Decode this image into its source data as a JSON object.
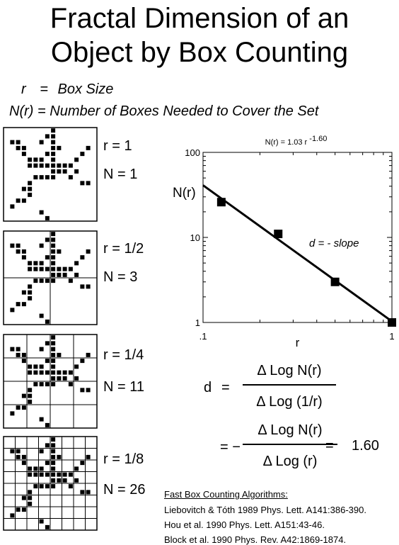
{
  "title": {
    "line1": "Fractal Dimension of an",
    "line2": "Object by Box Counting"
  },
  "definitions": {
    "r_symbol": "r",
    "r_eq": "=",
    "r_meaning": "Box Size",
    "n_symbol": "N(r)",
    "n_eq": "=",
    "n_meaning": "Number of Boxes Needed to  Cover the Set"
  },
  "panels": [
    {
      "r_label": "r = 1",
      "n_label": "N = 1",
      "grid_divisions": 1
    },
    {
      "r_label": "r = 1/2",
      "n_label": "N = 3",
      "grid_divisions": 2
    },
    {
      "r_label": "r = 1/4",
      "n_label": "N = 11",
      "grid_divisions": 4
    },
    {
      "r_label": "r = 1/8",
      "n_label": "N = 26",
      "grid_divisions": 8
    }
  ],
  "chart_data": {
    "type": "scatter",
    "title": "N(r) = 1.03 r -1.60",
    "title_base": "N(r) = 1.03 r",
    "title_exponent": "-1.60",
    "xlabel": "r",
    "ylabel": "N(r)",
    "x_scale": "log",
    "y_scale": "log",
    "xlim": [
      0.1,
      1
    ],
    "ylim": [
      1,
      100
    ],
    "x_ticks": [
      ".1",
      "1"
    ],
    "y_ticks": [
      "100",
      "10",
      "1"
    ],
    "points": [
      {
        "x": 0.125,
        "y": 26
      },
      {
        "x": 0.25,
        "y": 11
      },
      {
        "x": 0.5,
        "y": 3
      },
      {
        "x": 1,
        "y": 1
      }
    ],
    "fit": {
      "coefficient": 1.03,
      "exponent": -1.6
    },
    "annotation": "d  =  - slope",
    "grid": false
  },
  "formula": {
    "d_label": "d",
    "equals": "=",
    "numerator1": "Δ Log N(r)",
    "denominator1": "Δ Log (1/r)",
    "equals_minus": "= −",
    "numerator2": "Δ Log N(r)",
    "denominator2": "Δ Log (r)",
    "equals2": "=",
    "value": "1.60"
  },
  "references": {
    "heading": "Fast Box Counting Algorithms:",
    "items": [
      "Liebovitch & Tóth  1989  Phys. Lett. A141:386-390.",
      "Hou et al.  1990  Phys. Lett. A151:43-46.",
      "Block et al. 1990  Phys. Rev. A42:1869-1874."
    ]
  }
}
